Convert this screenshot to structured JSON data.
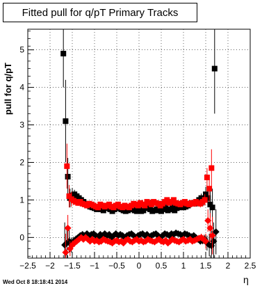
{
  "chart_data": {
    "type": "scatter",
    "title": "Fitted pull for q/pT  Primary Tracks",
    "xlabel": "η",
    "ylabel": "pull for q/pT",
    "xlim": [
      -2.5,
      2.5
    ],
    "ylim": [
      -0.55,
      5.55
    ],
    "x_ticks": [
      "−2.5",
      "−2",
      "−1.5",
      "−1",
      "−0.5",
      "0",
      "0.5",
      "1",
      "1.5",
      "2",
      "2.5"
    ],
    "x_tick_values": [
      -2.5,
      -2,
      -1.5,
      -1,
      -0.5,
      0,
      0.5,
      1,
      1.5,
      2,
      2.5
    ],
    "y_ticks": [
      "0",
      "1",
      "2",
      "3",
      "4",
      "5"
    ],
    "y_tick_values": [
      0,
      1,
      2,
      3,
      4,
      5
    ],
    "grid": true,
    "series": [
      {
        "marker": "square",
        "color": "#000000",
        "x": [
          -1.7,
          -1.65,
          -1.6,
          -1.55,
          -1.5,
          -1.45,
          -1.4,
          -1.35,
          -1.3,
          -1.25,
          -1.2,
          -1.15,
          -1.1,
          -1.05,
          -1.0,
          -0.95,
          -0.9,
          -0.85,
          -0.8,
          -0.75,
          -0.7,
          -0.65,
          -0.6,
          -0.55,
          -0.5,
          -0.45,
          -0.4,
          -0.35,
          -0.3,
          -0.25,
          -0.2,
          -0.15,
          -0.1,
          -0.05,
          0.0,
          0.05,
          0.1,
          0.15,
          0.2,
          0.25,
          0.3,
          0.35,
          0.4,
          0.45,
          0.5,
          0.55,
          0.6,
          0.65,
          0.7,
          0.75,
          0.8,
          0.85,
          0.9,
          0.95,
          1.0,
          1.05,
          1.1,
          1.15,
          1.2,
          1.25,
          1.3,
          1.35,
          1.4,
          1.45,
          1.5,
          1.55,
          1.6,
          1.65,
          1.7
        ],
        "y": [
          4.9,
          3.1,
          1.62,
          1.05,
          1.12,
          1.15,
          1.1,
          1.05,
          1.0,
          0.95,
          0.9,
          0.85,
          0.82,
          0.8,
          0.78,
          0.75,
          0.8,
          0.75,
          0.72,
          0.8,
          0.78,
          0.75,
          0.7,
          0.75,
          0.8,
          0.78,
          0.75,
          0.72,
          0.7,
          0.72,
          0.75,
          0.78,
          0.72,
          0.7,
          0.75,
          0.7,
          0.72,
          0.8,
          0.78,
          0.75,
          0.7,
          0.72,
          0.75,
          0.72,
          0.7,
          0.75,
          0.8,
          0.72,
          0.75,
          0.8,
          0.72,
          0.78,
          0.8,
          0.85,
          0.8,
          0.82,
          0.85,
          0.9,
          0.92,
          0.9,
          0.95,
          1.0,
          1.05,
          1.0,
          1.15,
          1.05,
          0.88,
          0.8,
          4.5
        ],
        "yerr": [
          0.9,
          1.1,
          0.5,
          0.25,
          0.2,
          0.12,
          0.1,
          0.08,
          0.08,
          0.07,
          0.06,
          0.06,
          0.05,
          0.05,
          0.05,
          0.05,
          0.05,
          0.05,
          0.05,
          0.05,
          0.05,
          0.05,
          0.05,
          0.05,
          0.05,
          0.05,
          0.05,
          0.05,
          0.05,
          0.05,
          0.05,
          0.05,
          0.05,
          0.05,
          0.05,
          0.05,
          0.05,
          0.05,
          0.05,
          0.05,
          0.05,
          0.05,
          0.05,
          0.05,
          0.05,
          0.05,
          0.05,
          0.05,
          0.05,
          0.05,
          0.05,
          0.05,
          0.05,
          0.05,
          0.05,
          0.05,
          0.06,
          0.06,
          0.07,
          0.08,
          0.08,
          0.1,
          0.12,
          0.15,
          0.2,
          0.25,
          0.35,
          0.5,
          1.2
        ]
      },
      {
        "marker": "square",
        "color": "#ff0000",
        "x": [
          -1.62,
          -1.57,
          -1.52,
          -1.47,
          -1.42,
          -1.37,
          -1.32,
          -1.27,
          -1.22,
          -1.17,
          -1.12,
          -1.07,
          -1.02,
          -0.97,
          -0.92,
          -0.87,
          -0.82,
          -0.77,
          -0.72,
          -0.67,
          -0.62,
          -0.57,
          -0.52,
          -0.47,
          -0.42,
          -0.37,
          -0.32,
          -0.27,
          -0.22,
          -0.17,
          -0.12,
          -0.07,
          -0.02,
          0.03,
          0.08,
          0.13,
          0.18,
          0.23,
          0.28,
          0.33,
          0.38,
          0.43,
          0.48,
          0.53,
          0.58,
          0.63,
          0.68,
          0.73,
          0.78,
          0.83,
          0.88,
          0.93,
          0.98,
          1.03,
          1.08,
          1.13,
          1.18,
          1.23,
          1.28,
          1.33,
          1.38,
          1.43,
          1.48,
          1.53,
          1.58,
          1.63
        ],
        "y": [
          1.9,
          1.1,
          1.02,
          0.98,
          0.95,
          0.92,
          0.95,
          0.9,
          0.88,
          0.85,
          0.9,
          0.88,
          0.85,
          0.82,
          0.8,
          0.88,
          0.85,
          0.82,
          0.85,
          0.88,
          0.82,
          0.8,
          0.85,
          0.88,
          0.82,
          0.8,
          0.85,
          0.82,
          0.8,
          0.85,
          0.9,
          0.88,
          0.85,
          0.92,
          0.88,
          0.85,
          0.95,
          0.92,
          0.88,
          0.95,
          0.92,
          0.9,
          0.85,
          0.9,
          0.95,
          1.0,
          0.92,
          0.95,
          1.0,
          0.92,
          0.9,
          0.88,
          0.92,
          0.95,
          0.9,
          0.88,
          0.92,
          0.9,
          0.95,
          0.92,
          0.9,
          0.95,
          1.0,
          1.6,
          1.3,
          1.85
        ],
        "yerr": [
          0.6,
          0.3,
          0.2,
          0.12,
          0.1,
          0.08,
          0.07,
          0.06,
          0.06,
          0.05,
          0.05,
          0.05,
          0.05,
          0.05,
          0.05,
          0.05,
          0.05,
          0.05,
          0.05,
          0.05,
          0.05,
          0.05,
          0.05,
          0.05,
          0.05,
          0.05,
          0.05,
          0.05,
          0.05,
          0.05,
          0.05,
          0.05,
          0.05,
          0.05,
          0.05,
          0.05,
          0.05,
          0.05,
          0.05,
          0.05,
          0.05,
          0.05,
          0.05,
          0.05,
          0.05,
          0.05,
          0.05,
          0.05,
          0.05,
          0.05,
          0.05,
          0.05,
          0.05,
          0.05,
          0.05,
          0.05,
          0.06,
          0.06,
          0.07,
          0.08,
          0.1,
          0.12,
          0.15,
          0.25,
          0.35,
          0.5
        ]
      },
      {
        "marker": "diamond",
        "color": "#000000",
        "x": [
          -1.67,
          -1.62,
          -1.57,
          -1.52,
          -1.47,
          -1.42,
          -1.37,
          -1.32,
          -1.27,
          -1.22,
          -1.17,
          -1.12,
          -1.07,
          -1.02,
          -0.97,
          -0.92,
          -0.87,
          -0.82,
          -0.77,
          -0.72,
          -0.67,
          -0.62,
          -0.57,
          -0.52,
          -0.47,
          -0.42,
          -0.37,
          -0.32,
          -0.27,
          -0.22,
          -0.17,
          -0.12,
          -0.07,
          -0.02,
          0.03,
          0.08,
          0.13,
          0.18,
          0.23,
          0.28,
          0.33,
          0.38,
          0.43,
          0.48,
          0.53,
          0.58,
          0.63,
          0.68,
          0.73,
          0.78,
          0.83,
          0.88,
          0.93,
          0.98,
          1.03,
          1.08,
          1.13,
          1.18,
          1.23,
          1.28,
          1.33,
          1.38,
          1.43,
          1.48,
          1.53,
          1.58,
          1.63,
          1.68,
          1.73
        ],
        "y": [
          -0.2,
          -0.15,
          -0.1,
          -0.2,
          -0.1,
          -0.05,
          0.0,
          0.05,
          0.08,
          0.05,
          0.1,
          0.05,
          0.08,
          0.1,
          0.05,
          0.0,
          0.08,
          0.05,
          0.1,
          0.05,
          0.08,
          0.0,
          0.05,
          0.1,
          0.05,
          0.08,
          0.05,
          0.0,
          0.05,
          0.08,
          0.1,
          0.05,
          0.0,
          0.05,
          0.08,
          0.1,
          0.05,
          0.08,
          0.0,
          0.05,
          0.08,
          0.1,
          0.05,
          0.0,
          0.05,
          0.1,
          0.08,
          0.05,
          0.1,
          0.08,
          0.12,
          0.1,
          0.08,
          0.05,
          0.1,
          0.08,
          0.05,
          0.02,
          0.05,
          0.0,
          -0.05,
          -0.1,
          -0.08,
          -0.05,
          -0.15,
          -0.2,
          -0.22,
          -0.1,
          0.15
        ],
        "yerr": [
          0.6,
          0.4,
          0.3,
          0.2,
          0.12,
          0.1,
          0.08,
          0.07,
          0.06,
          0.05,
          0.05,
          0.05,
          0.05,
          0.05,
          0.05,
          0.05,
          0.05,
          0.05,
          0.05,
          0.05,
          0.05,
          0.05,
          0.05,
          0.05,
          0.05,
          0.05,
          0.05,
          0.05,
          0.05,
          0.05,
          0.05,
          0.05,
          0.05,
          0.05,
          0.05,
          0.05,
          0.05,
          0.05,
          0.05,
          0.05,
          0.05,
          0.05,
          0.05,
          0.05,
          0.05,
          0.05,
          0.05,
          0.05,
          0.05,
          0.05,
          0.05,
          0.05,
          0.05,
          0.05,
          0.05,
          0.05,
          0.05,
          0.05,
          0.06,
          0.06,
          0.07,
          0.08,
          0.1,
          0.12,
          0.2,
          0.3,
          0.4,
          0.5,
          0.6
        ]
      },
      {
        "marker": "diamond",
        "color": "#ff0000",
        "x": [
          -1.65,
          -1.6,
          -1.55,
          -1.5,
          -1.45,
          -1.4,
          -1.35,
          -1.3,
          -1.25,
          -1.2,
          -1.15,
          -1.1,
          -1.05,
          -1.0,
          -0.95,
          -0.9,
          -0.85,
          -0.8,
          -0.75,
          -0.7,
          -0.65,
          -0.6,
          -0.55,
          -0.5,
          -0.45,
          -0.4,
          -0.35,
          -0.3,
          -0.25,
          -0.2,
          -0.15,
          -0.1,
          -0.05,
          0.0,
          0.05,
          0.1,
          0.15,
          0.2,
          0.25,
          0.3,
          0.35,
          0.4,
          0.45,
          0.5,
          0.55,
          0.6,
          0.65,
          0.7,
          0.75,
          0.8,
          0.85,
          0.9,
          0.95,
          1.0,
          1.05,
          1.1,
          1.15,
          1.2,
          1.25,
          1.3,
          1.35,
          1.4,
          1.45,
          1.5,
          1.55,
          1.6,
          1.65
        ],
        "y": [
          -0.4,
          0.25,
          -0.3,
          -0.2,
          -0.15,
          -0.1,
          -0.05,
          0.0,
          -0.05,
          0.0,
          -0.05,
          -0.1,
          -0.05,
          -0.1,
          -0.08,
          -0.12,
          -0.1,
          -0.05,
          -0.08,
          -0.1,
          -0.12,
          -0.15,
          -0.1,
          -0.08,
          -0.12,
          -0.1,
          -0.15,
          -0.08,
          -0.05,
          -0.1,
          -0.12,
          -0.08,
          -0.05,
          -0.1,
          -0.08,
          -0.12,
          -0.1,
          -0.05,
          -0.08,
          -0.1,
          -0.12,
          -0.08,
          -0.05,
          -0.1,
          -0.12,
          -0.08,
          -0.15,
          -0.1,
          -0.05,
          -0.08,
          -0.1,
          -0.12,
          -0.08,
          -0.05,
          -0.1,
          -0.08,
          -0.05,
          -0.1,
          -0.08,
          -0.05,
          -0.02,
          0.0,
          -0.05,
          -0.1,
          0.45,
          0.25,
          0.05
        ],
        "yerr": [
          0.5,
          0.35,
          0.2,
          0.12,
          0.1,
          0.08,
          0.07,
          0.06,
          0.05,
          0.05,
          0.05,
          0.05,
          0.05,
          0.05,
          0.05,
          0.05,
          0.05,
          0.05,
          0.05,
          0.05,
          0.05,
          0.05,
          0.05,
          0.05,
          0.05,
          0.05,
          0.05,
          0.05,
          0.05,
          0.05,
          0.05,
          0.05,
          0.05,
          0.05,
          0.05,
          0.05,
          0.05,
          0.05,
          0.05,
          0.05,
          0.05,
          0.05,
          0.05,
          0.05,
          0.05,
          0.05,
          0.05,
          0.05,
          0.05,
          0.05,
          0.05,
          0.05,
          0.05,
          0.05,
          0.05,
          0.05,
          0.05,
          0.06,
          0.06,
          0.07,
          0.08,
          0.1,
          0.12,
          0.2,
          0.3,
          0.4,
          0.5
        ]
      }
    ]
  },
  "footer": {
    "timestamp": "Wed Oct  8 18:18:41 2014"
  }
}
